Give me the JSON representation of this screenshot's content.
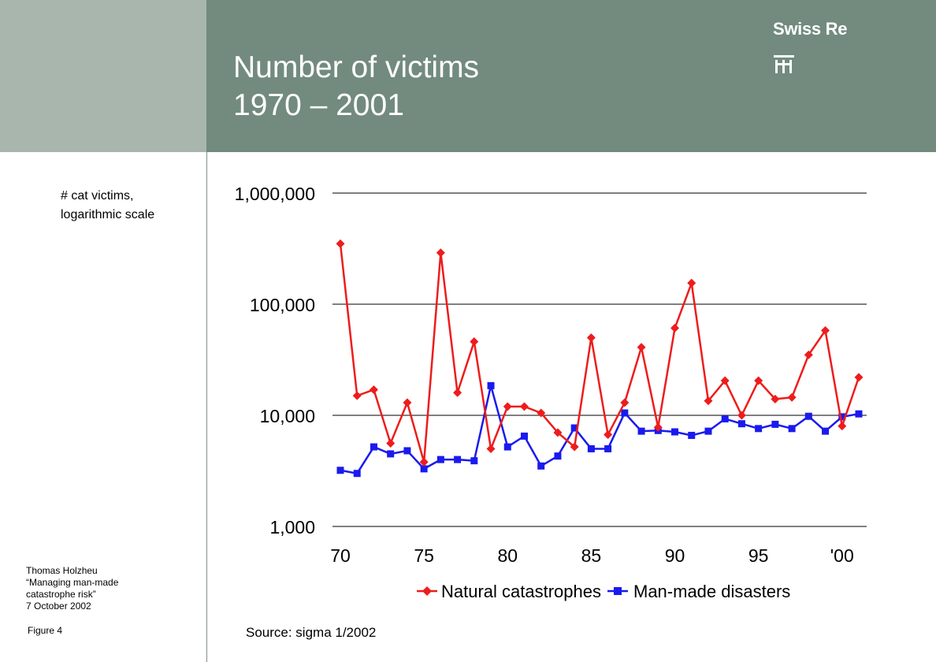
{
  "header": {
    "title_line1": "Number of victims",
    "title_line2": "1970 – 2001",
    "brand": "Swiss Re"
  },
  "sidebar": {
    "y_axis_note_line1": "# cat victims,",
    "y_axis_note_line2": "logarithmic scale",
    "author": "Thomas Holzheu",
    "talk_line1": "“Managing man-made",
    "talk_line2": "catastrophe risk”",
    "date": "7 October 2002",
    "figure": "Figure 4"
  },
  "footer": {
    "source": "Source: sigma 1/2002"
  },
  "colors": {
    "header_bg": "#728b7e",
    "side_band_bg": "#a8b6ae",
    "natural": "#ee1c1c",
    "manmade": "#1a1aee"
  },
  "icons": {
    "brand_mark": "swiss-re-logo-icon"
  },
  "chart_data": {
    "type": "line",
    "y_scale": "log",
    "ylim": [
      1000,
      1000000
    ],
    "y_ticks": [
      1000,
      10000,
      100000,
      1000000
    ],
    "y_tick_labels": [
      "1,000",
      "10,000",
      "100,000",
      "1,000,000"
    ],
    "xlim": [
      1970,
      2001
    ],
    "x_ticks": [
      1970,
      1975,
      1980,
      1985,
      1990,
      1995,
      2000
    ],
    "x_tick_labels": [
      "70",
      "75",
      "80",
      "85",
      "90",
      "95",
      "'00"
    ],
    "grid": "horizontal",
    "legend_position": "bottom",
    "x": [
      1970,
      1971,
      1972,
      1973,
      1974,
      1975,
      1976,
      1977,
      1978,
      1979,
      1980,
      1981,
      1982,
      1983,
      1984,
      1985,
      1986,
      1987,
      1988,
      1989,
      1990,
      1991,
      1992,
      1993,
      1994,
      1995,
      1996,
      1997,
      1998,
      1999,
      2000,
      2001
    ],
    "series": [
      {
        "name": "Natural catastrophes",
        "color": "#ee1c1c",
        "marker": "diamond",
        "values": [
          350000,
          15000,
          17000,
          5600,
          13000,
          3800,
          290000,
          16000,
          46000,
          5000,
          12000,
          12000,
          10500,
          7000,
          5200,
          50000,
          6700,
          13000,
          41000,
          7800,
          61000,
          155000,
          13500,
          20500,
          10000,
          20500,
          14000,
          14500,
          35000,
          58000,
          8000,
          22000
        ]
      },
      {
        "name": "Man-made disasters",
        "color": "#1a1aee",
        "marker": "square",
        "values": [
          3200,
          3000,
          5200,
          4500,
          4800,
          3300,
          4000,
          4000,
          3900,
          18500,
          5200,
          6500,
          3500,
          4300,
          7700,
          5000,
          5000,
          10500,
          7200,
          7300,
          7100,
          6600,
          7200,
          9300,
          8400,
          7600,
          8300,
          7600,
          9800,
          7200,
          9700,
          10300
        ]
      }
    ]
  }
}
